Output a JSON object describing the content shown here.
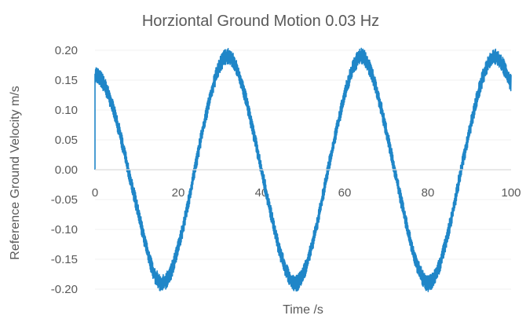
{
  "chart_data": {
    "type": "line",
    "title": "Horziontal Ground Motion 0.03 Hz",
    "xlabel": "Time /s",
    "ylabel": "Reference Ground Velocity  m/s",
    "xlim": [
      0,
      100
    ],
    "ylim": [
      -0.2,
      0.2
    ],
    "x_ticks": [
      "0",
      "20",
      "40",
      "60",
      "80",
      "100"
    ],
    "y_ticks": [
      "0.20",
      "0.15",
      "0.10",
      "0.05",
      "0.00",
      "-0.05",
      "-0.10",
      "-0.15",
      "-0.20"
    ],
    "grid": "horizontal",
    "legend": "none",
    "series_color": "#1f86c8",
    "axis_color": "#d9d9d9",
    "series": [
      {
        "x": [
          0,
          2,
          4,
          6,
          8,
          10,
          12,
          14,
          16,
          18,
          20,
          22,
          24,
          26,
          28,
          30,
          32,
          34,
          36,
          38,
          40,
          42,
          44,
          46,
          48,
          50,
          52,
          54,
          56,
          58,
          60,
          62,
          64,
          66,
          68,
          70,
          72,
          74,
          76,
          78,
          80,
          82,
          84,
          86,
          88,
          90,
          92,
          94,
          96,
          98,
          100
        ],
        "y": [
          0.16,
          0.145,
          0.11,
          0.06,
          0.0,
          -0.06,
          -0.12,
          -0.17,
          -0.19,
          -0.175,
          -0.13,
          -0.07,
          0.0,
          0.07,
          0.13,
          0.175,
          0.19,
          0.17,
          0.125,
          0.065,
          0.0,
          -0.065,
          -0.125,
          -0.17,
          -0.19,
          -0.175,
          -0.13,
          -0.07,
          0.0,
          0.065,
          0.125,
          0.17,
          0.19,
          0.17,
          0.125,
          0.065,
          0.0,
          -0.065,
          -0.125,
          -0.17,
          -0.19,
          -0.175,
          -0.13,
          -0.07,
          0.0,
          0.065,
          0.125,
          0.17,
          0.19,
          0.175,
          0.145
        ]
      }
    ]
  }
}
